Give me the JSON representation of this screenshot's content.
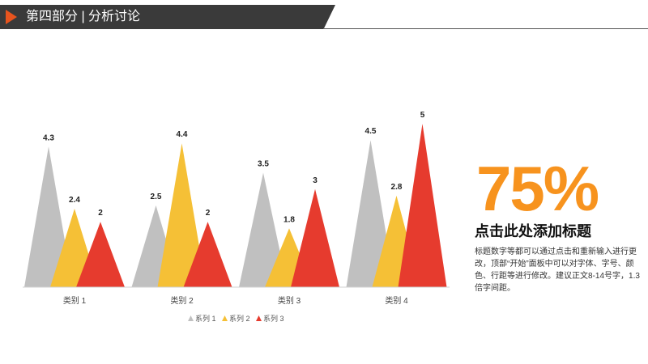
{
  "header": {
    "title": "第四部分 | 分析讨论"
  },
  "colors": {
    "accent": "#e8541e",
    "header_bg": "#3a3a3a",
    "series": [
      "#c0c0c0",
      "#f5c036",
      "#e63b2e"
    ],
    "percent": "#f7931e"
  },
  "side_panel": {
    "percent": "75%",
    "title": "点击此处添加标题",
    "body": "标题数字等都可以通过点击和重新输入进行更改，顶部“开始”面板中可以对字体、字号、颜色、行距等进行修改。建议正文8-14号字，1.3倍字间距。"
  },
  "chart_data": {
    "type": "bar",
    "mark": "triangle",
    "categories": [
      "类别 1",
      "类别 2",
      "类别 3",
      "类别 4"
    ],
    "series": [
      {
        "name": "系列 1",
        "values": [
          4.3,
          2.5,
          3.5,
          4.5
        ]
      },
      {
        "name": "系列 2",
        "values": [
          2.4,
          4.4,
          1.8,
          2.8
        ]
      },
      {
        "name": "系列 3",
        "values": [
          2,
          2,
          3,
          5
        ]
      }
    ],
    "data_labels": true,
    "ylim": [
      0,
      5
    ],
    "grid": false,
    "legend": "bottom"
  }
}
